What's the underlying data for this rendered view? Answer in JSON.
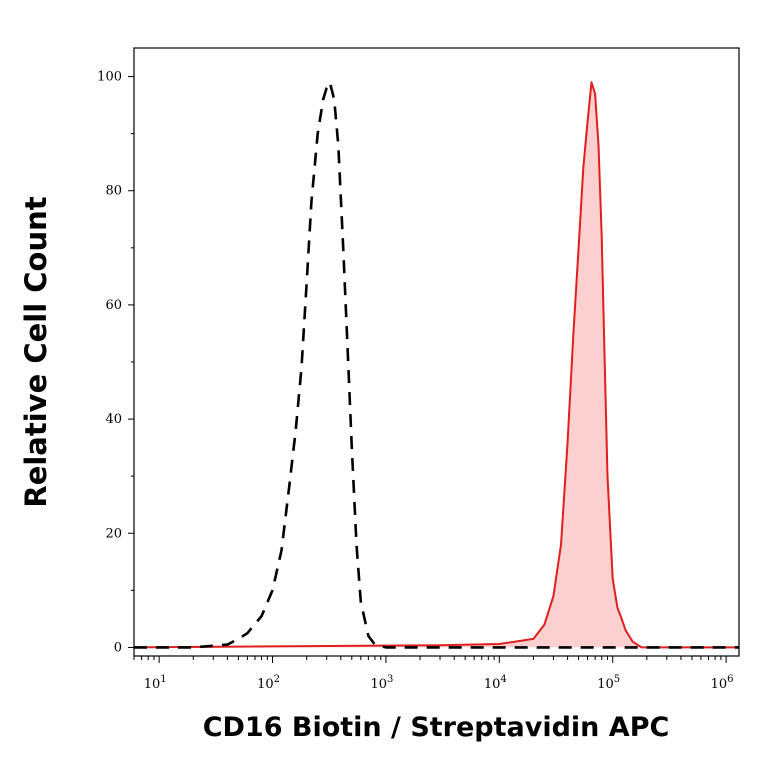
{
  "chart_data": {
    "type": "area",
    "xlabel": "CD16 Biotin / Streptavidin APC",
    "ylabel": "Relative Cell Count",
    "x_scale": "log",
    "xlim": [
      6,
      1300000
    ],
    "ylim": [
      -1.5,
      105
    ],
    "y_ticks": [
      "0",
      "20",
      "40",
      "60",
      "80",
      "100"
    ],
    "x_ticks": [
      {
        "value": 10,
        "base": "10",
        "exp": "1"
      },
      {
        "value": 100,
        "base": "10",
        "exp": "2"
      },
      {
        "value": 1000,
        "base": "10",
        "exp": "3"
      },
      {
        "value": 10000,
        "base": "10",
        "exp": "4"
      },
      {
        "value": 100000,
        "base": "10",
        "exp": "5"
      },
      {
        "value": 1000000,
        "base": "10",
        "exp": "6"
      }
    ],
    "series": [
      {
        "style": "dashed",
        "color": "#000000",
        "x": [
          6,
          20,
          40,
          50,
          60,
          80,
          100,
          120,
          140,
          160,
          180,
          200,
          220,
          250,
          280,
          300,
          320,
          350,
          380,
          420,
          460,
          500,
          550,
          600,
          700,
          800,
          1000,
          1300000
        ],
        "y": [
          0,
          0,
          0.5,
          1.5,
          2.5,
          5.5,
          10,
          17,
          28,
          38,
          49,
          64,
          78,
          90,
          96,
          98,
          99,
          96,
          88,
          70,
          52,
          35,
          18,
          8,
          2,
          0.5,
          0,
          0
        ]
      },
      {
        "style": "filled",
        "color": "#e01e1e",
        "fill": "#fcd0d0",
        "x": [
          6,
          3000,
          10000,
          20000,
          25000,
          30000,
          35000,
          40000,
          45000,
          50000,
          55000,
          60000,
          65000,
          70000,
          75000,
          80000,
          85000,
          90000,
          100000,
          110000,
          120000,
          130000,
          150000,
          180000,
          1300000
        ],
        "y": [
          0,
          0.4,
          0.6,
          1.5,
          4,
          9,
          18,
          36,
          55,
          70,
          84,
          92,
          99,
          97,
          88,
          72,
          50,
          30,
          12,
          7,
          5,
          3,
          1,
          0,
          0
        ]
      }
    ]
  }
}
